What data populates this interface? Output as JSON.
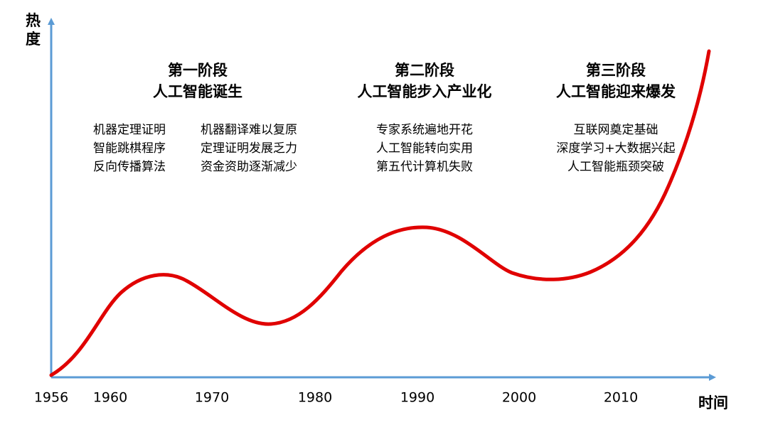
{
  "axes": {
    "y_label": "热度",
    "x_label": "时间",
    "x_ticks": [
      "1956",
      "1960",
      "1970",
      "1980",
      "1990",
      "2000",
      "2010"
    ]
  },
  "stages": [
    {
      "title": "第一阶段",
      "subtitle": "人工智能诞生",
      "columns": [
        [
          "机器定理证明",
          "智能跳棋程序",
          "反向传播算法"
        ],
        [
          "机器翻译难以复原",
          "定理证明发展乏力",
          "资金资助逐渐减少"
        ]
      ]
    },
    {
      "title": "第二阶段",
      "subtitle": "人工智能步入产业化",
      "columns": [
        [
          "专家系统遍地开花",
          "人工智能转向实用",
          "第五代计算机失败"
        ]
      ]
    },
    {
      "title": "第三阶段",
      "subtitle": "人工智能迎来爆发",
      "columns": [
        [
          "互联网奠定基础",
          "深度学习+大数据兴起",
          "人工智能瓶颈突破"
        ]
      ]
    }
  ]
}
